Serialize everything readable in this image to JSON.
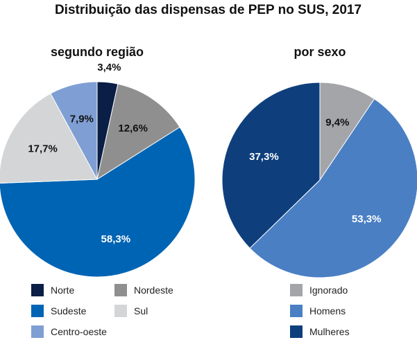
{
  "title": "Distribuição das dispensas de PEP no SUS, 2017",
  "chart_data": [
    {
      "type": "pie",
      "title": "segundo região",
      "categories": [
        "Norte",
        "Nordeste",
        "Sudeste",
        "Sul",
        "Centro-oeste"
      ],
      "slice_order": [
        "Norte",
        "Nordeste",
        "Sudeste",
        "Sul",
        "Centro-oeste"
      ],
      "values": [
        3.4,
        12.6,
        58.3,
        17.7,
        7.9
      ],
      "labels": [
        "3,4%",
        "12,6%",
        "58,3%",
        "17,7%",
        "7,9%"
      ],
      "colors": [
        "#0a1e46",
        "#8f8f8f",
        "#0064b4",
        "#d3d5d6",
        "#7f9fd4"
      ],
      "label_colors": [
        "#111111",
        "#111111",
        "#ffffff",
        "#111111",
        "#111111"
      ],
      "label_outside": [
        true,
        false,
        false,
        false,
        false
      ],
      "start_angle_deg": 0,
      "direction": "clockwise",
      "legend": {
        "placement": "bottom",
        "columns": 2,
        "items": [
          "Norte",
          "Nordeste",
          "Sudeste",
          "Sul",
          "Centro-oeste"
        ]
      }
    },
    {
      "type": "pie",
      "title": "por sexo",
      "categories": [
        "Ignorado",
        "Homens",
        "Mulheres"
      ],
      "slice_order": [
        "Ignorado",
        "Homens",
        "Mulheres"
      ],
      "values": [
        9.4,
        53.3,
        37.3
      ],
      "labels": [
        "9,4%",
        "53,3%",
        "37,3%"
      ],
      "colors": [
        "#a3a5a8",
        "#4a7fc4",
        "#0e3f7c"
      ],
      "label_colors": [
        "#111111",
        "#ffffff",
        "#ffffff"
      ],
      "label_outside": [
        false,
        false,
        false
      ],
      "start_angle_deg": 0,
      "direction": "clockwise",
      "legend": {
        "placement": "bottom",
        "columns": 1,
        "items": [
          "Ignorado",
          "Homens",
          "Mulheres"
        ]
      }
    }
  ]
}
